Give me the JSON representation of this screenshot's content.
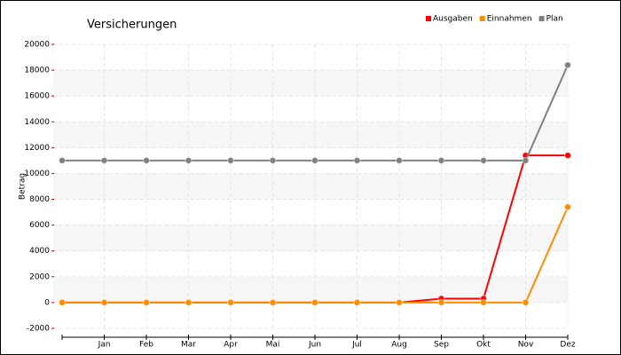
{
  "chart_data": {
    "type": "line",
    "title": "Versicherungen",
    "ylabel": "Betrag",
    "categories": [
      null,
      "Jan",
      "Feb",
      "Mar",
      "Apr",
      "Mai",
      "Jun",
      "Jul",
      "Aug",
      "Sep",
      "Okt",
      "Nov",
      "Dez"
    ],
    "series": [
      {
        "name": "Ausgaben",
        "color": "#ff0000",
        "values": [
          0,
          0,
          0,
          0,
          0,
          0,
          0,
          0,
          0,
          300,
          300,
          11400,
          11400
        ]
      },
      {
        "name": "Einnahmen",
        "color": "#ff8c00",
        "values": [
          0,
          0,
          0,
          0,
          0,
          0,
          0,
          0,
          0,
          0,
          0,
          0,
          7400
        ]
      },
      {
        "name": "Plan",
        "color": "#808080",
        "values": [
          11000,
          11000,
          11000,
          11000,
          11000,
          11000,
          11000,
          11000,
          11000,
          11000,
          11000,
          11000,
          18400
        ]
      }
    ],
    "ylim": [
      -2000,
      20000
    ],
    "yticks": [
      -2000,
      0,
      2000,
      4000,
      6000,
      8000,
      10000,
      12000,
      14000,
      16000,
      18000,
      20000
    ],
    "grid": true,
    "legend": "top-right"
  }
}
